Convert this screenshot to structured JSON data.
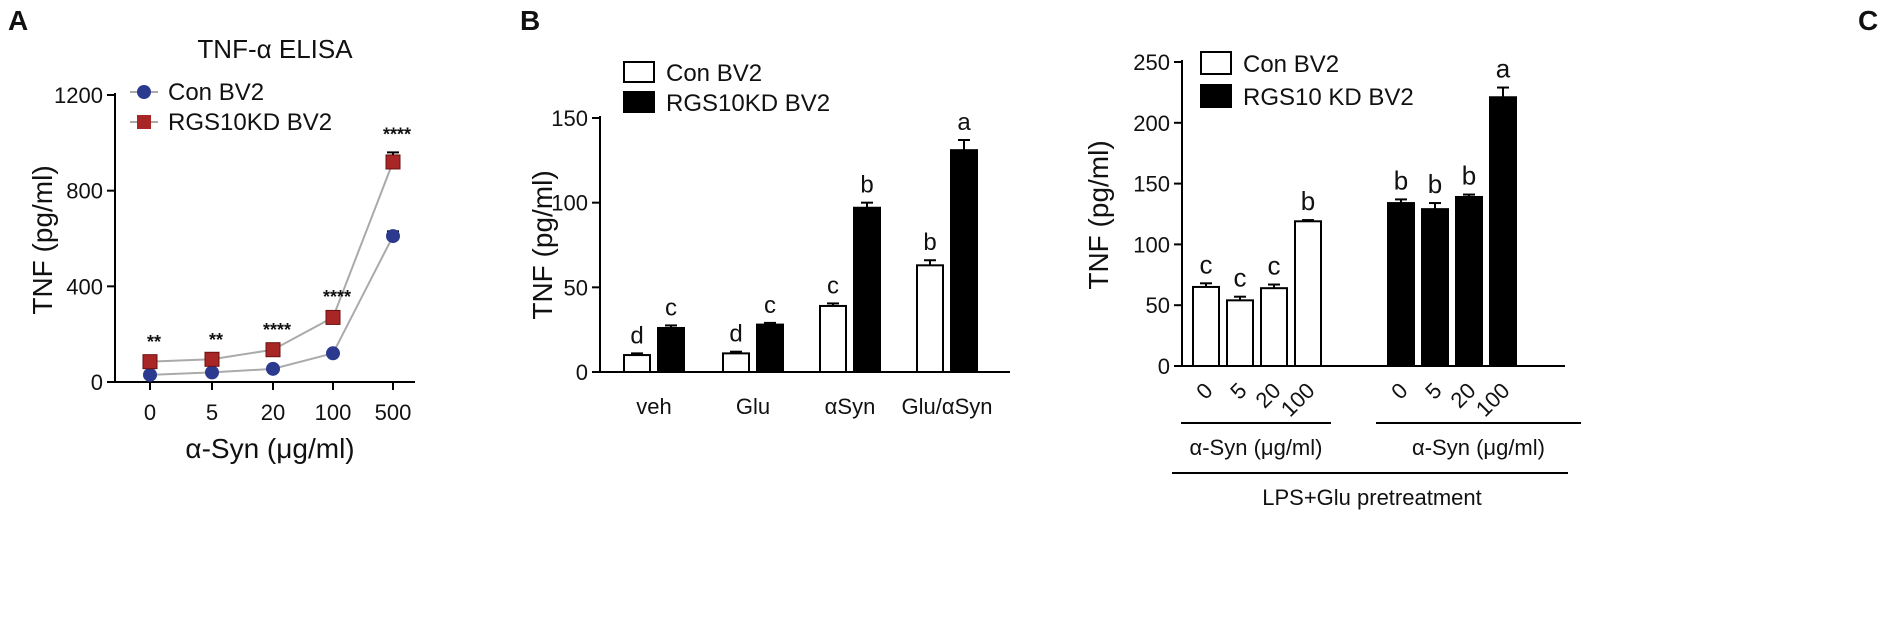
{
  "chart_data": [
    {
      "panel": "A",
      "type": "line",
      "title": "TNF-α ELISA",
      "xlabel": "α-Syn (μg/ml)",
      "ylabel": "TNF (pg/ml)",
      "categories": [
        "0",
        "5",
        "20",
        "100",
        "500"
      ],
      "ylim": [
        0,
        1200
      ],
      "yticks": [
        "0",
        "400",
        "800",
        "1200"
      ],
      "series": [
        {
          "name": "Con BV2",
          "marker": "circle",
          "color": "#2b3a8f",
          "values": [
            30,
            40,
            55,
            120,
            610
          ],
          "errors": [
            5,
            5,
            5,
            8,
            20
          ]
        },
        {
          "name": "RGS10KD BV2",
          "marker": "square",
          "color": "#a82626",
          "values": [
            85,
            95,
            135,
            270,
            920
          ],
          "errors": [
            6,
            6,
            8,
            10,
            40
          ]
        }
      ],
      "annotations": [
        "**",
        "**",
        "****",
        "****",
        "****"
      ],
      "legend": "top-left"
    },
    {
      "panel": "B",
      "type": "bar",
      "xlabel": "",
      "ylabel": "TNF (pg/ml)",
      "categories": [
        "veh",
        "Glu",
        "αSyn",
        "Glu/αSyn"
      ],
      "ylim": [
        0,
        150
      ],
      "yticks": [
        "0",
        "50",
        "100",
        "150"
      ],
      "series": [
        {
          "name": "Con BV2",
          "fill": "#ffffff",
          "values": [
            10,
            11,
            39,
            63
          ],
          "errors": [
            1,
            1,
            1.5,
            3
          ],
          "letters": [
            "d",
            "d",
            "c",
            "b"
          ]
        },
        {
          "name": "RGS10KD BV2",
          "fill": "#000000",
          "values": [
            26,
            28,
            97,
            131
          ],
          "errors": [
            1.5,
            1,
            3,
            6
          ],
          "letters": [
            "c",
            "c",
            "b",
            "a"
          ]
        }
      ],
      "legend": "top-left"
    },
    {
      "panel": "C",
      "type": "bar",
      "ylabel": "TNF (pg/ml)",
      "ylim": [
        0,
        250
      ],
      "yticks": [
        "0",
        "50",
        "100",
        "150",
        "200",
        "250"
      ],
      "groups": [
        {
          "name": "Con BV2",
          "fill": "#ffffff",
          "categories": [
            "0",
            "5",
            "20",
            "100"
          ],
          "values": [
            65,
            54,
            64,
            119
          ],
          "errors": [
            3,
            3,
            3,
            1
          ],
          "letters": [
            "c",
            "c",
            "c",
            "b"
          ],
          "xlabel": "α-Syn (μg/ml)"
        },
        {
          "name": "RGS10 KD BV2",
          "fill": "#000000",
          "categories": [
            "0",
            "5",
            "20",
            "100"
          ],
          "values": [
            134,
            129,
            139,
            221
          ],
          "errors": [
            3,
            5,
            2,
            8
          ],
          "letters": [
            "b",
            "b",
            "b",
            "a"
          ],
          "xlabel": "α-Syn (μg/ml)"
        }
      ],
      "bottom_label": "LPS+Glu pretreatment",
      "legend": "top-left"
    }
  ]
}
